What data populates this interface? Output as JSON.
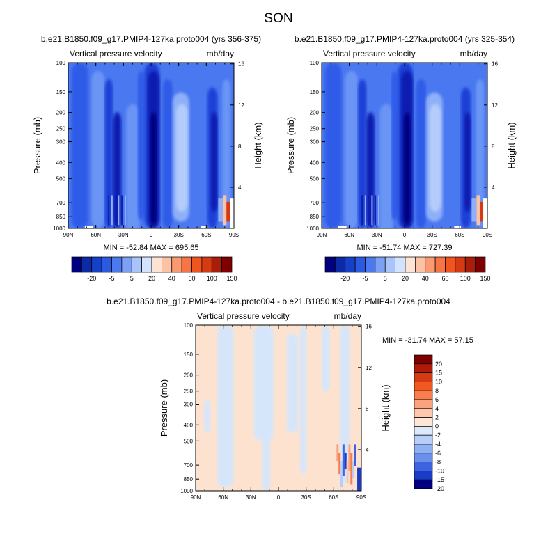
{
  "page_title": "SON",
  "chart_data": [
    {
      "type": "heatmap",
      "title": "b.e21.B1850.f09_g17.PMIP4-127ka.proto004 (yrs 356-375)",
      "left_label": "Vertical pressure velocity",
      "right_label": "mb/day",
      "xlabel": "",
      "ylabel": "Pressure (mb)",
      "y2label": "Height (km)",
      "x_ticks": [
        "90N",
        "60N",
        "30N",
        "0",
        "30S",
        "60S",
        "90S"
      ],
      "y_ticks": [
        "100",
        "150",
        "200",
        "250",
        "300",
        "400",
        "500",
        "700",
        "850",
        "1000"
      ],
      "y2_ticks": [
        "16",
        "12",
        "8",
        "4"
      ],
      "stats": "MIN = -52.84   MAX = 695.65",
      "colorbar_levels": [
        "-20",
        "-5",
        "5",
        "20",
        "40",
        "60",
        "100",
        "150"
      ],
      "colorbar_orientation": "horizontal",
      "palette": "blue-white-red"
    },
    {
      "type": "heatmap",
      "title": "b.e21.B1850.f09_g17.PMIP4-127ka.proto004 (yrs 325-354)",
      "left_label": "Vertical pressure velocity",
      "right_label": "mb/day",
      "xlabel": "",
      "ylabel": "Pressure (mb)",
      "y2label": "Height (km)",
      "x_ticks": [
        "90N",
        "60N",
        "30N",
        "0",
        "30S",
        "60S",
        "90S"
      ],
      "y_ticks": [
        "100",
        "150",
        "200",
        "250",
        "300",
        "400",
        "500",
        "700",
        "850",
        "1000"
      ],
      "y2_ticks": [
        "16",
        "12",
        "8",
        "4"
      ],
      "stats": "MIN = -51.74   MAX = 727.39",
      "colorbar_levels": [
        "-20",
        "-5",
        "5",
        "20",
        "40",
        "60",
        "100",
        "150"
      ],
      "colorbar_orientation": "horizontal",
      "palette": "blue-white-red"
    },
    {
      "type": "heatmap",
      "title": "b.e21.B1850.f09_g17.PMIP4-127ka.proto004 - b.e21.B1850.f09_g17.PMIP4-127ka.proto004",
      "left_label": "Vertical pressure velocity",
      "right_label": "mb/day",
      "xlabel": "",
      "ylabel": "Pressure (mb)",
      "y2label": "Height (km)",
      "x_ticks": [
        "90N",
        "60N",
        "30N",
        "0",
        "30S",
        "60S",
        "90S"
      ],
      "y_ticks": [
        "100",
        "150",
        "200",
        "250",
        "300",
        "400",
        "500",
        "700",
        "850",
        "1000"
      ],
      "y2_ticks": [
        "16",
        "12",
        "8",
        "4"
      ],
      "stats": "MIN = -31.74   MAX =  57.15",
      "colorbar_levels": [
        "20",
        "15",
        "10",
        "8",
        "6",
        "4",
        "2",
        "0",
        "-2",
        "-4",
        "-6",
        "-8",
        "-10",
        "-15",
        "-20"
      ],
      "colorbar_orientation": "vertical",
      "palette": "red-white-blue"
    }
  ],
  "colors": {
    "field_blues": [
      "#00007f",
      "#0b1fb0",
      "#1f3fd6",
      "#2e5ce8",
      "#4a78f0",
      "#6b95f5",
      "#8fb0f8",
      "#b3ccfb"
    ],
    "main_bar": [
      "#000080",
      "#0a2aa6",
      "#1540c8",
      "#2a5ae0",
      "#4b7aee",
      "#7ba0f5",
      "#a9c4fa",
      "#d3e3fd",
      "#fde3d3",
      "#fcc2a6",
      "#fa9a70",
      "#f77445",
      "#f0541f",
      "#d63a12",
      "#a81e0b",
      "#7f0000"
    ],
    "diff_bar": [
      "#7f0000",
      "#b01a0a",
      "#d63a12",
      "#f05a22",
      "#f77f4f",
      "#fba37f",
      "#fdc8ac",
      "#fde6d8",
      "#dde9fb",
      "#b7cef8",
      "#8fb0f3",
      "#6b90ec",
      "#3f63df",
      "#1a3bc5",
      "#00007f"
    ],
    "diff_warm": "#fde3cf",
    "diff_cool": "#d6e6fa"
  }
}
